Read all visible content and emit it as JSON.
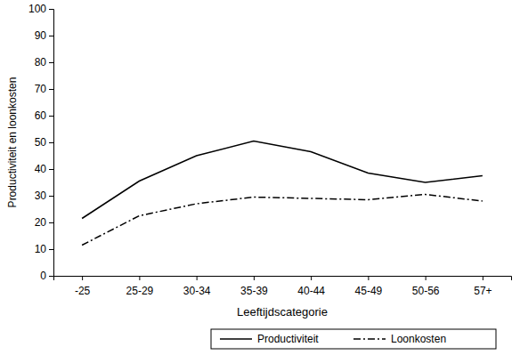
{
  "chart_data": {
    "type": "line",
    "x_label": "Leeftijdscategorie",
    "y_label": "Productiviteit en loonkosten",
    "categories": [
      "-25",
      "25-29",
      "30-34",
      "35-39",
      "40-44",
      "45-49",
      "50-56",
      "57+"
    ],
    "series": [
      {
        "name": "Productiviteit",
        "color": "#000000",
        "line_style": "solid",
        "values": [
          21.5,
          35.5,
          45,
          50.5,
          46.5,
          38.5,
          35,
          37.5
        ]
      },
      {
        "name": "Loonkosten",
        "color": "#000000",
        "line_style": "dashdot",
        "values": [
          11.5,
          22.5,
          27,
          29.5,
          29,
          28.5,
          30.5,
          28
        ]
      }
    ],
    "ylim": [
      0,
      100
    ],
    "yticks": [
      0,
      10,
      20,
      30,
      40,
      50,
      60,
      70,
      80,
      90,
      100
    ],
    "grid": false,
    "legend": "bottom"
  }
}
